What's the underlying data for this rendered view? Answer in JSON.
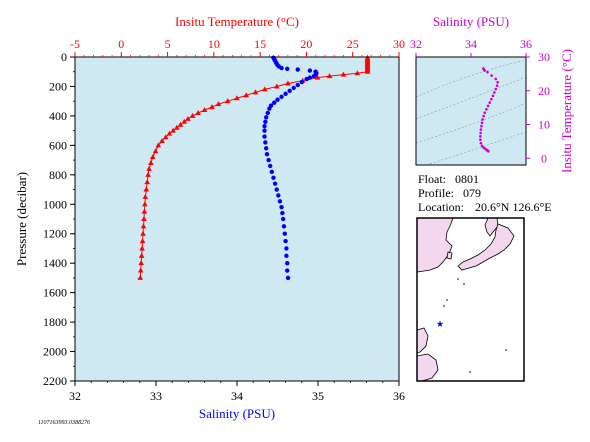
{
  "colors": {
    "temperature": "#ff0000",
    "salinity": "#0000ff",
    "salinity_ts": "#cc00cc",
    "plot_background": "#cfe9f2",
    "land": "#f2d7ee"
  },
  "footer": "1107163993.0388276",
  "info": {
    "float_label": "Float:",
    "float_value": "0801",
    "profile_label": "Profile:",
    "profile_value": "079",
    "location_label": "Location:",
    "location_value": "20.6°N  126.6°E"
  },
  "map": {
    "float_marker": "star-icon"
  },
  "chart_data": [
    {
      "type": "line",
      "title": "",
      "top_axis_label": "Insitu Temperature (°C)",
      "bottom_axis_label": "Salinity (PSU)",
      "ylabel": "Pressure (decibar)",
      "temperature_range": [
        -5,
        30
      ],
      "temperature_ticks": [
        "-5",
        "0",
        "5",
        "10",
        "15",
        "20",
        "25",
        "30"
      ],
      "salinity_range": [
        32,
        36
      ],
      "salinity_ticks": [
        "32",
        "33",
        "34",
        "35",
        "36"
      ],
      "pressure_range": [
        0,
        2200
      ],
      "pressure_ticks": [
        "0",
        "200",
        "400",
        "600",
        "800",
        "1000",
        "1200",
        "1400",
        "1600",
        "1800",
        "2000",
        "2200"
      ],
      "y_inverted": true,
      "grid": false,
      "series": [
        {
          "name": "Temperature",
          "marker": "triangle",
          "axis": "top",
          "points": [
            [
              26.6,
              5
            ],
            [
              26.6,
              12
            ],
            [
              26.6,
              20
            ],
            [
              26.6,
              28
            ],
            [
              26.6,
              36
            ],
            [
              26.6,
              44
            ],
            [
              26.6,
              52
            ],
            [
              26.6,
              60
            ],
            [
              26.6,
              68
            ],
            [
              26.6,
              76
            ],
            [
              26.6,
              84
            ],
            [
              26.6,
              92
            ],
            [
              26.6,
              100
            ],
            [
              25.5,
              110
            ],
            [
              24.0,
              120
            ],
            [
              22.5,
              130
            ],
            [
              21.2,
              140
            ],
            [
              19.6,
              160
            ],
            [
              18.0,
              180
            ],
            [
              16.8,
              200
            ],
            [
              15.5,
              220
            ],
            [
              14.5,
              240
            ],
            [
              13.5,
              260
            ],
            [
              12.5,
              280
            ],
            [
              11.5,
              300
            ],
            [
              10.5,
              320
            ],
            [
              9.8,
              340
            ],
            [
              9.0,
              360
            ],
            [
              8.3,
              380
            ],
            [
              7.7,
              400
            ],
            [
              7.2,
              420
            ],
            [
              6.8,
              440
            ],
            [
              6.4,
              460
            ],
            [
              6.0,
              480
            ],
            [
              5.6,
              500
            ],
            [
              5.2,
              520
            ],
            [
              4.8,
              545
            ],
            [
              4.4,
              570
            ],
            [
              4.0,
              600
            ],
            [
              3.7,
              640
            ],
            [
              3.4,
              680
            ],
            [
              3.2,
              720
            ],
            [
              3.0,
              760
            ],
            [
              2.9,
              800
            ],
            [
              2.8,
              850
            ],
            [
              2.7,
              900
            ],
            [
              2.6,
              950
            ],
            [
              2.55,
              1000
            ],
            [
              2.5,
              1050
            ],
            [
              2.45,
              1100
            ],
            [
              2.4,
              1150
            ],
            [
              2.35,
              1200
            ],
            [
              2.3,
              1250
            ],
            [
              2.25,
              1300
            ],
            [
              2.2,
              1350
            ],
            [
              2.15,
              1400
            ],
            [
              2.1,
              1450
            ],
            [
              2.05,
              1500
            ]
          ]
        },
        {
          "name": "Salinity",
          "marker": "circle",
          "axis": "bottom",
          "points": [
            [
              34.45,
              5
            ],
            [
              34.46,
              15
            ],
            [
              34.47,
              25
            ],
            [
              34.48,
              35
            ],
            [
              34.49,
              45
            ],
            [
              34.5,
              55
            ],
            [
              34.52,
              65
            ],
            [
              34.55,
              75
            ],
            [
              34.62,
              80
            ],
            [
              34.75,
              85
            ],
            [
              34.9,
              92
            ],
            [
              34.97,
              100
            ],
            [
              34.98,
              110
            ],
            [
              34.97,
              120
            ],
            [
              34.95,
              130
            ],
            [
              34.9,
              140
            ],
            [
              34.86,
              150
            ],
            [
              34.8,
              170
            ],
            [
              34.75,
              190
            ],
            [
              34.7,
              210
            ],
            [
              34.65,
              230
            ],
            [
              34.6,
              250
            ],
            [
              34.55,
              270
            ],
            [
              34.5,
              290
            ],
            [
              34.46,
              310
            ],
            [
              34.42,
              330
            ],
            [
              34.4,
              350
            ],
            [
              34.38,
              380
            ],
            [
              34.36,
              410
            ],
            [
              34.35,
              440
            ],
            [
              34.34,
              470
            ],
            [
              34.34,
              500
            ],
            [
              34.34,
              540
            ],
            [
              34.35,
              580
            ],
            [
              34.36,
              620
            ],
            [
              34.37,
              660
            ],
            [
              34.39,
              700
            ],
            [
              34.41,
              740
            ],
            [
              34.43,
              780
            ],
            [
              34.45,
              820
            ],
            [
              34.47,
              860
            ],
            [
              34.49,
              900
            ],
            [
              34.51,
              940
            ],
            [
              34.53,
              980
            ],
            [
              34.55,
              1020
            ],
            [
              34.56,
              1060
            ],
            [
              34.57,
              1100
            ],
            [
              34.58,
              1150
            ],
            [
              34.59,
              1200
            ],
            [
              34.6,
              1250
            ],
            [
              34.61,
              1300
            ],
            [
              34.61,
              1350
            ],
            [
              34.62,
              1400
            ],
            [
              34.62,
              1450
            ],
            [
              34.63,
              1500
            ]
          ]
        }
      ]
    },
    {
      "type": "scatter",
      "title": "",
      "xlabel": "Salinity (PSU)",
      "ylabel": "Insitu Temperature (°C)",
      "xlim": [
        32,
        36
      ],
      "x_ticks": [
        "32",
        "34",
        "36"
      ],
      "ylim": [
        -2,
        30
      ],
      "y_ticks": [
        "0",
        "10",
        "20",
        "30"
      ],
      "grid": false,
      "series": [
        {
          "name": "T-S",
          "points": [
            [
              34.45,
              26.6
            ],
            [
              34.47,
              26.3
            ],
            [
              34.5,
              26.0
            ],
            [
              34.6,
              25.5
            ],
            [
              34.75,
              24.5
            ],
            [
              34.9,
              23.5
            ],
            [
              34.97,
              22.5
            ],
            [
              34.95,
              21.5
            ],
            [
              34.9,
              20.5
            ],
            [
              34.85,
              19.5
            ],
            [
              34.8,
              18.5
            ],
            [
              34.74,
              17.5
            ],
            [
              34.68,
              16.5
            ],
            [
              34.62,
              15.5
            ],
            [
              34.56,
              14.5
            ],
            [
              34.5,
              13.5
            ],
            [
              34.46,
              12.5
            ],
            [
              34.42,
              11.5
            ],
            [
              34.4,
              10.5
            ],
            [
              34.38,
              9.5
            ],
            [
              34.36,
              8.5
            ],
            [
              34.35,
              7.5
            ],
            [
              34.34,
              6.5
            ],
            [
              34.34,
              5.5
            ],
            [
              34.36,
              4.5
            ],
            [
              34.4,
              3.7
            ],
            [
              34.45,
              3.2
            ],
            [
              34.5,
              2.9
            ],
            [
              34.55,
              2.6
            ],
            [
              34.58,
              2.4
            ],
            [
              34.6,
              2.3
            ],
            [
              34.62,
              2.2
            ],
            [
              34.63,
              2.05
            ]
          ]
        }
      ]
    }
  ]
}
